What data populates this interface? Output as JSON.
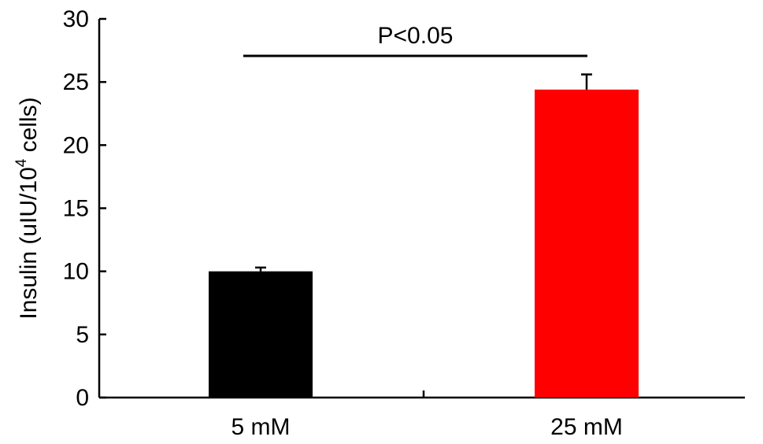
{
  "chart_data": {
    "type": "bar",
    "categories": [
      "5 mM",
      "25 mM"
    ],
    "values": [
      10.0,
      24.4
    ],
    "errors": [
      0.3,
      1.2
    ],
    "bar_colors": [
      "#000000",
      "#ff0000"
    ],
    "ylabel_main": "Insulin (uIU/10",
    "ylabel_sup": "4",
    "ylabel_tail": " cells)",
    "ylim": [
      0,
      30
    ],
    "yticks": [
      0,
      5,
      10,
      15,
      20,
      25,
      30
    ],
    "significance": {
      "label": "P<0.05",
      "between": [
        0,
        1
      ]
    },
    "grid": false,
    "legend": false
  }
}
